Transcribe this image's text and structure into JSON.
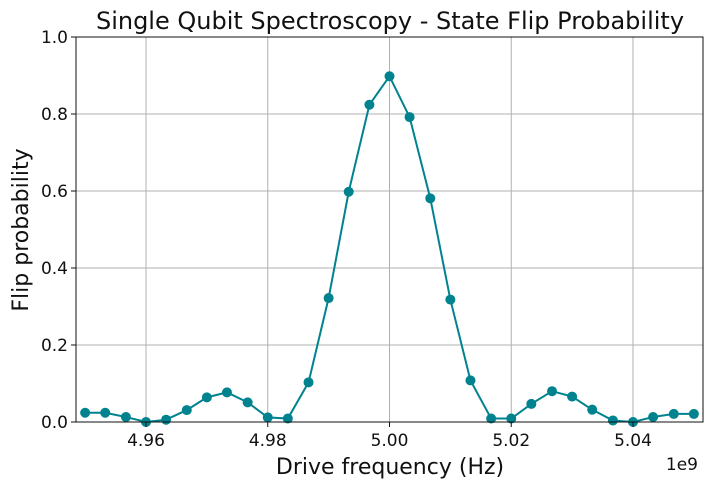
{
  "chart_data": {
    "type": "line",
    "title": "Single Qubit Spectroscopy - State Flip Probability",
    "xlabel": "Drive frequency (Hz)",
    "ylabel": "Flip probability",
    "x_offset_label": "1e9",
    "xlim": [
      4.9485,
      5.0515
    ],
    "ylim": [
      0.0,
      1.0
    ],
    "xticks": [
      4.96,
      4.98,
      5.0,
      5.02,
      5.04
    ],
    "xtick_labels": [
      "4.96",
      "4.98",
      "5.00",
      "5.02",
      "5.04"
    ],
    "yticks": [
      0.0,
      0.2,
      0.4,
      0.6,
      0.8,
      1.0
    ],
    "ytick_labels": [
      "0.0",
      "0.2",
      "0.4",
      "0.6",
      "0.8",
      "1.0"
    ],
    "grid": true,
    "marker": "circle",
    "color": "#00838f",
    "x": [
      4.95,
      4.9533,
      4.9567,
      4.96,
      4.9633,
      4.9667,
      4.97,
      4.9733,
      4.9767,
      4.98,
      4.9833,
      4.9867,
      4.99,
      4.9933,
      4.9967,
      5.0,
      5.0033,
      5.0067,
      5.01,
      5.0133,
      5.0167,
      5.02,
      5.0233,
      5.0267,
      5.03,
      5.0333,
      5.0367,
      5.04,
      5.0433,
      5.0467,
      5.05
    ],
    "y": [
      0.024,
      0.024,
      0.013,
      0.0,
      0.006,
      0.031,
      0.064,
      0.077,
      0.051,
      0.012,
      0.009,
      0.103,
      0.322,
      0.598,
      0.824,
      0.898,
      0.792,
      0.581,
      0.318,
      0.108,
      0.009,
      0.009,
      0.047,
      0.08,
      0.066,
      0.032,
      0.004,
      0.0,
      0.013,
      0.021,
      0.021
    ]
  }
}
